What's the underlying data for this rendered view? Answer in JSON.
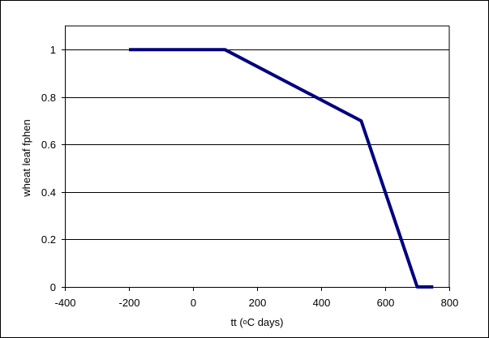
{
  "chart_data": {
    "type": "line",
    "xlabel": "tt (",
    "xlabel_degree": "o",
    "xlabel_rest": "C days)",
    "ylabel": "wheat leaf fphen",
    "xlim": [
      -400,
      800
    ],
    "ylim": [
      0,
      1.1
    ],
    "xticks": [
      -400,
      -200,
      0,
      200,
      400,
      600,
      800
    ],
    "yticks": [
      0,
      0.2,
      0.4,
      0.6,
      0.8,
      1
    ],
    "ytick_labels": [
      "0",
      "0.2",
      "0.4",
      "0.6",
      "0.8",
      "1"
    ],
    "grid": "horizontal",
    "legend": "none",
    "series": [
      {
        "color": "#000080",
        "x": [
          -200,
          100,
          525,
          700,
          750
        ],
        "y": [
          1,
          1,
          0.7,
          0,
          0
        ]
      }
    ]
  }
}
